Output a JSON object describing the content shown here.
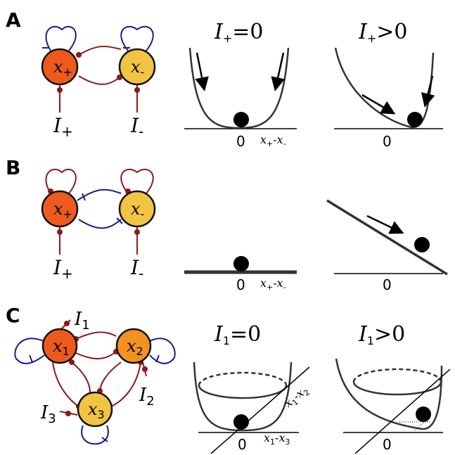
{
  "panels": [
    {
      "label": "A",
      "nodes": [
        {
          "var": "x",
          "sub": "+"
        },
        {
          "var": "x",
          "sub": "-"
        }
      ],
      "inputs": [
        {
          "var": "I",
          "sub": "+"
        },
        {
          "var": "I",
          "sub": "-"
        }
      ],
      "plots": [
        {
          "title": {
            "var": "I",
            "sub": "+",
            "rel": "=0"
          },
          "origin": "0",
          "axis": [
            {
              "var": "x",
              "sub": "+"
            },
            {
              "var": "-x",
              "sub": "-"
            }
          ]
        },
        {
          "title": {
            "var": "I",
            "sub": "+",
            "rel": ">0"
          },
          "origin": "0"
        }
      ]
    },
    {
      "label": "B",
      "nodes": [
        {
          "var": "x",
          "sub": "+"
        },
        {
          "var": "x",
          "sub": "-"
        }
      ],
      "inputs": [
        {
          "var": "I",
          "sub": "+"
        },
        {
          "var": "I",
          "sub": "-"
        }
      ],
      "plots": [
        {
          "origin": "0",
          "axis": [
            {
              "var": "x",
              "sub": "+"
            },
            {
              "var": "-x",
              "sub": "-"
            }
          ]
        },
        {
          "origin": "0"
        }
      ]
    },
    {
      "label": "C",
      "nodes": [
        {
          "var": "x",
          "sub": "1"
        },
        {
          "var": "x",
          "sub": "2"
        },
        {
          "var": "x",
          "sub": "3"
        }
      ],
      "inputs": [
        {
          "var": "I",
          "sub": "1"
        },
        {
          "var": "I",
          "sub": "2"
        },
        {
          "var": "I",
          "sub": "3"
        }
      ],
      "plots": [
        {
          "title": {
            "var": "I",
            "sub": "1",
            "rel": "=0"
          },
          "origin": "0",
          "axis": [
            {
              "var": "x",
              "sub": "1"
            },
            {
              "var": "-x",
              "sub": "3"
            }
          ],
          "axis2": [
            {
              "var": "x",
              "sub": "1"
            },
            {
              "var": "-x",
              "sub": "2"
            }
          ]
        },
        {
          "title": {
            "var": "I",
            "sub": "1",
            "rel": ">0"
          },
          "origin": "0"
        }
      ]
    }
  ]
}
